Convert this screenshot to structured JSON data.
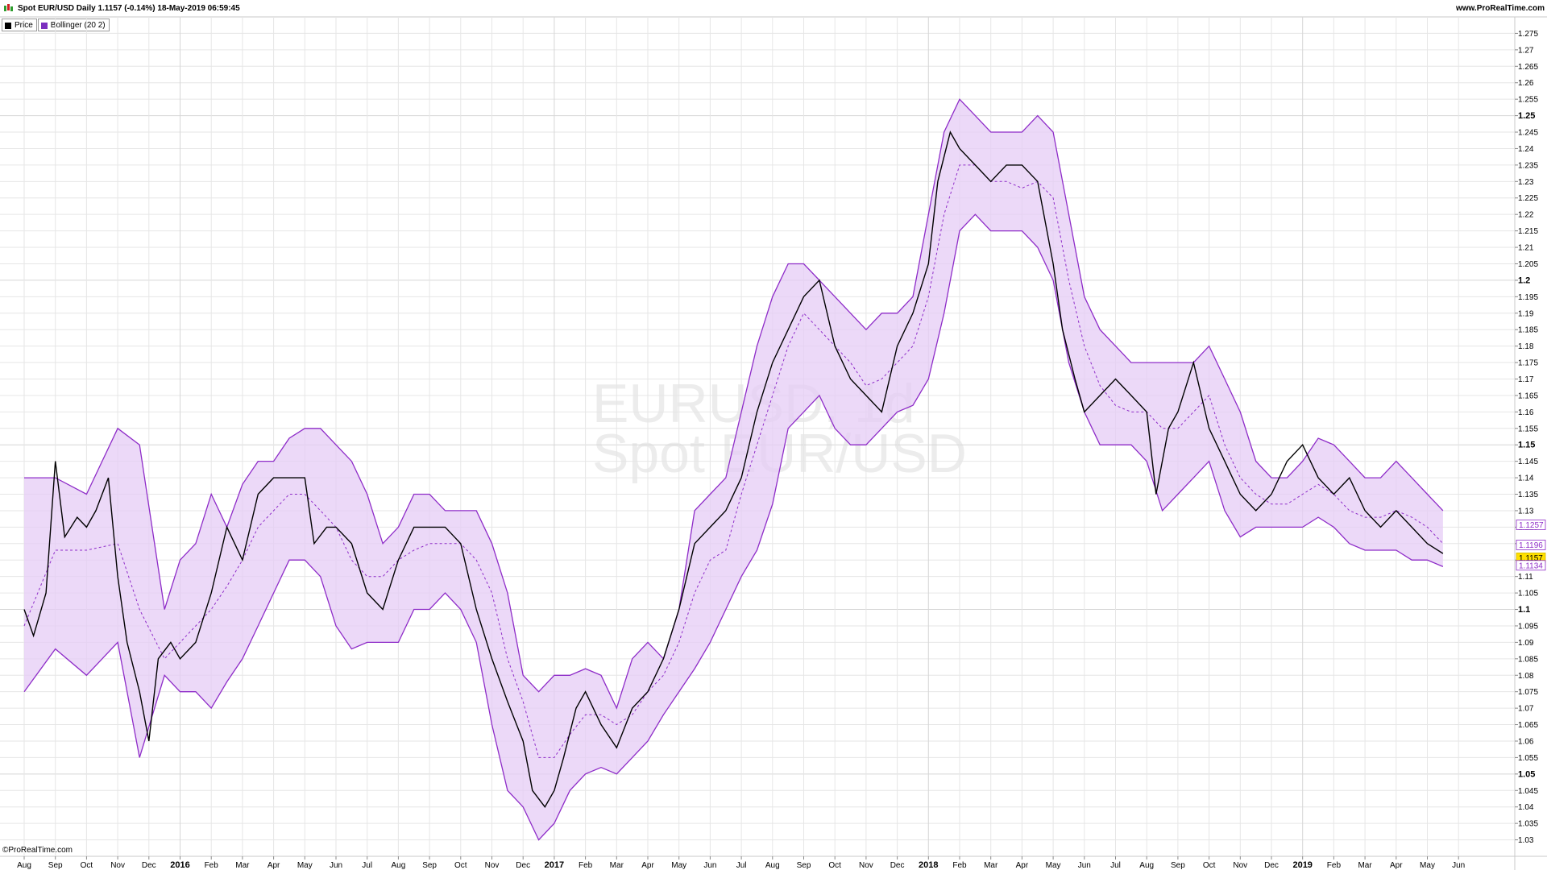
{
  "header": {
    "title": "Spot EUR/USD Daily 1.1157 (-0.14%) 18-May-2019 06:59:45",
    "site": "www.ProRealTime.com"
  },
  "legend": [
    {
      "label": "Price",
      "color": "#000000"
    },
    {
      "label": "Bollinger (20 2)",
      "color": "#7b2fbf"
    }
  ],
  "watermark": {
    "line1": "EURUSD, 1d",
    "line2": "Spot EUR/USD"
  },
  "footer": {
    "brand": "©ProRealTime.com"
  },
  "colors": {
    "price": "#000000",
    "band_line": "#8e2cc8",
    "band_fill": "#e6ccf5",
    "grid": "#e6e6e6",
    "last_price_bg": "#ffe000"
  },
  "chart_data": {
    "type": "line",
    "title": "Spot EUR/USD Daily",
    "ylim": [
      1.025,
      1.28
    ],
    "y_ticks": [
      {
        "v": 1.03,
        "label": "1.03"
      },
      {
        "v": 1.035,
        "label": "1.035"
      },
      {
        "v": 1.04,
        "label": "1.04"
      },
      {
        "v": 1.045,
        "label": "1.045"
      },
      {
        "v": 1.05,
        "label": "1.05",
        "major": true
      },
      {
        "v": 1.055,
        "label": "1.055"
      },
      {
        "v": 1.06,
        "label": "1.06"
      },
      {
        "v": 1.065,
        "label": "1.065"
      },
      {
        "v": 1.07,
        "label": "1.07"
      },
      {
        "v": 1.075,
        "label": "1.075"
      },
      {
        "v": 1.08,
        "label": "1.08"
      },
      {
        "v": 1.085,
        "label": "1.085"
      },
      {
        "v": 1.09,
        "label": "1.09"
      },
      {
        "v": 1.095,
        "label": "1.095"
      },
      {
        "v": 1.1,
        "label": "1.1",
        "major": true
      },
      {
        "v": 1.105,
        "label": "1.105"
      },
      {
        "v": 1.11,
        "label": "1.11"
      },
      {
        "v": 1.115,
        "label": "1.115"
      },
      {
        "v": 1.12,
        "label": "1.12"
      },
      {
        "v": 1.125,
        "label": "1.125"
      },
      {
        "v": 1.13,
        "label": "1.13"
      },
      {
        "v": 1.135,
        "label": "1.135"
      },
      {
        "v": 1.14,
        "label": "1.14"
      },
      {
        "v": 1.145,
        "label": "1.145"
      },
      {
        "v": 1.15,
        "label": "1.15",
        "major": true
      },
      {
        "v": 1.155,
        "label": "1.155"
      },
      {
        "v": 1.16,
        "label": "1.16"
      },
      {
        "v": 1.165,
        "label": "1.165"
      },
      {
        "v": 1.17,
        "label": "1.17"
      },
      {
        "v": 1.175,
        "label": "1.175"
      },
      {
        "v": 1.18,
        "label": "1.18"
      },
      {
        "v": 1.185,
        "label": "1.185"
      },
      {
        "v": 1.19,
        "label": "1.19"
      },
      {
        "v": 1.195,
        "label": "1.195"
      },
      {
        "v": 1.2,
        "label": "1.2",
        "major": true
      },
      {
        "v": 1.205,
        "label": "1.205"
      },
      {
        "v": 1.21,
        "label": "1.21"
      },
      {
        "v": 1.215,
        "label": "1.215"
      },
      {
        "v": 1.22,
        "label": "1.22"
      },
      {
        "v": 1.225,
        "label": "1.225"
      },
      {
        "v": 1.23,
        "label": "1.23"
      },
      {
        "v": 1.235,
        "label": "1.235"
      },
      {
        "v": 1.24,
        "label": "1.24"
      },
      {
        "v": 1.245,
        "label": "1.245"
      },
      {
        "v": 1.25,
        "label": "1.25",
        "major": true
      },
      {
        "v": 1.255,
        "label": "1.255"
      },
      {
        "v": 1.26,
        "label": "1.26"
      },
      {
        "v": 1.265,
        "label": "1.265"
      },
      {
        "v": 1.27,
        "label": "1.27"
      },
      {
        "v": 1.275,
        "label": "1.275"
      }
    ],
    "x_start_month": "2015-08",
    "x_months": [
      {
        "m": 0,
        "label": "Aug"
      },
      {
        "m": 1,
        "label": "Sep"
      },
      {
        "m": 2,
        "label": "Oct"
      },
      {
        "m": 3,
        "label": "Nov"
      },
      {
        "m": 4,
        "label": "Dec"
      },
      {
        "m": 5,
        "label": "2016",
        "year": true
      },
      {
        "m": 6,
        "label": "Feb"
      },
      {
        "m": 7,
        "label": "Mar"
      },
      {
        "m": 8,
        "label": "Apr"
      },
      {
        "m": 9,
        "label": "May"
      },
      {
        "m": 10,
        "label": "Jun"
      },
      {
        "m": 11,
        "label": "Jul"
      },
      {
        "m": 12,
        "label": "Aug"
      },
      {
        "m": 13,
        "label": "Sep"
      },
      {
        "m": 14,
        "label": "Oct"
      },
      {
        "m": 15,
        "label": "Nov"
      },
      {
        "m": 16,
        "label": "Dec"
      },
      {
        "m": 17,
        "label": "2017",
        "year": true
      },
      {
        "m": 18,
        "label": "Feb"
      },
      {
        "m": 19,
        "label": "Mar"
      },
      {
        "m": 20,
        "label": "Apr"
      },
      {
        "m": 21,
        "label": "May"
      },
      {
        "m": 22,
        "label": "Jun"
      },
      {
        "m": 23,
        "label": "Jul"
      },
      {
        "m": 24,
        "label": "Aug"
      },
      {
        "m": 25,
        "label": "Sep"
      },
      {
        "m": 26,
        "label": "Oct"
      },
      {
        "m": 27,
        "label": "Nov"
      },
      {
        "m": 28,
        "label": "Dec"
      },
      {
        "m": 29,
        "label": "2018",
        "year": true
      },
      {
        "m": 30,
        "label": "Feb"
      },
      {
        "m": 31,
        "label": "Mar"
      },
      {
        "m": 32,
        "label": "Apr"
      },
      {
        "m": 33,
        "label": "May"
      },
      {
        "m": 34,
        "label": "Jun"
      },
      {
        "m": 35,
        "label": "Jul"
      },
      {
        "m": 36,
        "label": "Aug"
      },
      {
        "m": 37,
        "label": "Sep"
      },
      {
        "m": 38,
        "label": "Oct"
      },
      {
        "m": 39,
        "label": "Nov"
      },
      {
        "m": 40,
        "label": "Dec"
      },
      {
        "m": 41,
        "label": "2019",
        "year": true
      },
      {
        "m": 42,
        "label": "Feb"
      },
      {
        "m": 43,
        "label": "Mar"
      },
      {
        "m": 44,
        "label": "Apr"
      },
      {
        "m": 45,
        "label": "May"
      },
      {
        "m": 46,
        "label": "Jun"
      }
    ],
    "series": [
      {
        "name": "Price",
        "x_unit": "month",
        "x": [
          0,
          0.3,
          0.7,
          1,
          1.3,
          1.7,
          2,
          2.3,
          2.7,
          3,
          3.3,
          3.7,
          4,
          4.3,
          4.7,
          5,
          5.5,
          6,
          6.5,
          7,
          7.5,
          8,
          8.5,
          9,
          9.3,
          9.7,
          10,
          10.5,
          11,
          11.5,
          12,
          12.5,
          13,
          13.5,
          14,
          14.5,
          15,
          15.5,
          16,
          16.3,
          16.7,
          17,
          17.3,
          17.7,
          18,
          18.5,
          19,
          19.5,
          20,
          20.5,
          21,
          21.5,
          22,
          22.5,
          23,
          23.5,
          24,
          24.5,
          25,
          25.5,
          26,
          26.5,
          27,
          27.5,
          28,
          28.5,
          29,
          29.3,
          29.7,
          30,
          30.5,
          31,
          31.5,
          32,
          32.5,
          33,
          33.3,
          33.7,
          34,
          34.5,
          35,
          35.5,
          36,
          36.3,
          36.7,
          37,
          37.5,
          38,
          38.5,
          39,
          39.5,
          40,
          40.5,
          41,
          41.5,
          42,
          42.5,
          43,
          43.5,
          44,
          44.5,
          45,
          45.5
        ],
        "y": [
          1.1,
          1.092,
          1.105,
          1.145,
          1.122,
          1.128,
          1.125,
          1.13,
          1.14,
          1.11,
          1.09,
          1.075,
          1.06,
          1.085,
          1.09,
          1.085,
          1.09,
          1.105,
          1.125,
          1.115,
          1.135,
          1.14,
          1.14,
          1.14,
          1.12,
          1.125,
          1.125,
          1.12,
          1.105,
          1.1,
          1.115,
          1.125,
          1.125,
          1.125,
          1.12,
          1.1,
          1.085,
          1.072,
          1.06,
          1.045,
          1.04,
          1.045,
          1.055,
          1.07,
          1.075,
          1.065,
          1.058,
          1.07,
          1.075,
          1.085,
          1.1,
          1.12,
          1.125,
          1.13,
          1.14,
          1.16,
          1.175,
          1.185,
          1.195,
          1.2,
          1.18,
          1.17,
          1.165,
          1.16,
          1.18,
          1.19,
          1.205,
          1.23,
          1.245,
          1.24,
          1.235,
          1.23,
          1.235,
          1.235,
          1.23,
          1.205,
          1.185,
          1.17,
          1.16,
          1.165,
          1.17,
          1.165,
          1.16,
          1.135,
          1.155,
          1.16,
          1.175,
          1.155,
          1.145,
          1.135,
          1.13,
          1.135,
          1.145,
          1.15,
          1.14,
          1.135,
          1.14,
          1.13,
          1.125,
          1.13,
          1.125,
          1.12,
          1.117
        ]
      },
      {
        "name": "Bollinger (20 2)",
        "x_unit": "month",
        "x": [
          0,
          1,
          2,
          3,
          3.7,
          4.5,
          5,
          5.5,
          6,
          6.5,
          7,
          7.5,
          8,
          8.5,
          9,
          9.5,
          10,
          10.5,
          11,
          11.5,
          12,
          12.5,
          13,
          13.5,
          14,
          14.5,
          15,
          15.5,
          16,
          16.5,
          17,
          17.5,
          18,
          18.5,
          19,
          19.5,
          20,
          20.5,
          21,
          21.5,
          22,
          22.5,
          23,
          23.5,
          24,
          24.5,
          25,
          25.5,
          26,
          26.5,
          27,
          27.5,
          28,
          28.5,
          29,
          29.5,
          30,
          30.5,
          31,
          31.5,
          32,
          32.5,
          33,
          33.5,
          34,
          34.5,
          35,
          35.5,
          36,
          36.5,
          37,
          37.5,
          38,
          38.5,
          39,
          39.5,
          40,
          40.5,
          41,
          41.5,
          42,
          42.5,
          43,
          43.5,
          44,
          44.5,
          45,
          45.5
        ],
        "upper": [
          1.14,
          1.14,
          1.135,
          1.155,
          1.15,
          1.1,
          1.115,
          1.12,
          1.135,
          1.125,
          1.138,
          1.145,
          1.145,
          1.152,
          1.155,
          1.155,
          1.15,
          1.145,
          1.135,
          1.12,
          1.125,
          1.135,
          1.135,
          1.13,
          1.13,
          1.13,
          1.12,
          1.105,
          1.08,
          1.075,
          1.08,
          1.08,
          1.082,
          1.08,
          1.07,
          1.085,
          1.09,
          1.085,
          1.1,
          1.13,
          1.135,
          1.14,
          1.16,
          1.18,
          1.195,
          1.205,
          1.205,
          1.2,
          1.195,
          1.19,
          1.185,
          1.19,
          1.19,
          1.195,
          1.22,
          1.245,
          1.255,
          1.25,
          1.245,
          1.245,
          1.245,
          1.25,
          1.245,
          1.22,
          1.195,
          1.185,
          1.18,
          1.175,
          1.175,
          1.175,
          1.175,
          1.175,
          1.18,
          1.17,
          1.16,
          1.145,
          1.14,
          1.14,
          1.145,
          1.152,
          1.15,
          1.145,
          1.14,
          1.14,
          1.145,
          1.14,
          1.135,
          1.13
        ],
        "mid": [
          1.095,
          1.118,
          1.118,
          1.12,
          1.1,
          1.085,
          1.09,
          1.095,
          1.1,
          1.107,
          1.115,
          1.125,
          1.13,
          1.135,
          1.135,
          1.13,
          1.125,
          1.115,
          1.11,
          1.11,
          1.115,
          1.118,
          1.12,
          1.12,
          1.12,
          1.115,
          1.105,
          1.085,
          1.072,
          1.055,
          1.055,
          1.062,
          1.068,
          1.068,
          1.065,
          1.068,
          1.075,
          1.08,
          1.09,
          1.105,
          1.115,
          1.118,
          1.135,
          1.15,
          1.165,
          1.18,
          1.19,
          1.185,
          1.18,
          1.175,
          1.168,
          1.17,
          1.175,
          1.18,
          1.195,
          1.22,
          1.235,
          1.235,
          1.23,
          1.23,
          1.228,
          1.23,
          1.225,
          1.2,
          1.18,
          1.168,
          1.162,
          1.16,
          1.16,
          1.155,
          1.155,
          1.16,
          1.165,
          1.15,
          1.14,
          1.135,
          1.132,
          1.132,
          1.135,
          1.138,
          1.135,
          1.13,
          1.128,
          1.128,
          1.13,
          1.128,
          1.125,
          1.12
        ],
        "lower": [
          1.075,
          1.088,
          1.08,
          1.09,
          1.055,
          1.08,
          1.075,
          1.075,
          1.07,
          1.078,
          1.085,
          1.095,
          1.105,
          1.115,
          1.115,
          1.11,
          1.095,
          1.088,
          1.09,
          1.09,
          1.09,
          1.1,
          1.1,
          1.105,
          1.1,
          1.09,
          1.065,
          1.045,
          1.04,
          1.03,
          1.035,
          1.045,
          1.05,
          1.052,
          1.05,
          1.055,
          1.06,
          1.068,
          1.075,
          1.082,
          1.09,
          1.1,
          1.11,
          1.118,
          1.132,
          1.155,
          1.16,
          1.165,
          1.155,
          1.15,
          1.15,
          1.155,
          1.16,
          1.162,
          1.17,
          1.19,
          1.215,
          1.22,
          1.215,
          1.215,
          1.215,
          1.21,
          1.2,
          1.175,
          1.16,
          1.15,
          1.15,
          1.15,
          1.145,
          1.13,
          1.135,
          1.14,
          1.145,
          1.13,
          1.122,
          1.125,
          1.125,
          1.125,
          1.125,
          1.128,
          1.125,
          1.12,
          1.118,
          1.118,
          1.118,
          1.115,
          1.115,
          1.113
        ]
      }
    ],
    "price_labels": [
      {
        "v": 1.1257,
        "label": "1.1257",
        "kind": "band"
      },
      {
        "v": 1.1196,
        "label": "1.1196",
        "kind": "band"
      },
      {
        "v": 1.1157,
        "label": "1.1157",
        "kind": "last"
      },
      {
        "v": 1.1134,
        "label": "1.1134",
        "kind": "band"
      }
    ],
    "grid": true,
    "legend_position": "top-left"
  }
}
